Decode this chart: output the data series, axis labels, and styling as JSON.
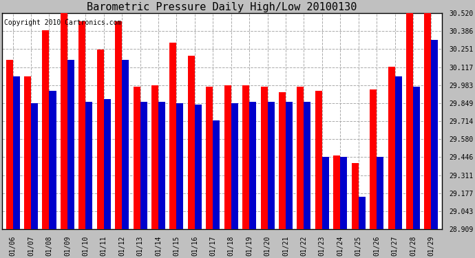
{
  "title": "Barometric Pressure Daily High/Low 20100130",
  "copyright": "Copyright 2010 Cartronics.com",
  "dates": [
    "01/06",
    "01/07",
    "01/08",
    "01/09",
    "01/10",
    "01/11",
    "01/12",
    "01/13",
    "01/14",
    "01/15",
    "01/16",
    "01/17",
    "01/18",
    "01/19",
    "01/20",
    "01/21",
    "01/22",
    "01/23",
    "01/24",
    "01/25",
    "01/26",
    "01/27",
    "01/28",
    "01/29"
  ],
  "highs": [
    30.17,
    30.05,
    30.39,
    30.52,
    30.46,
    30.25,
    30.46,
    29.97,
    29.98,
    30.3,
    30.2,
    29.97,
    29.98,
    29.98,
    29.97,
    29.93,
    29.97,
    29.94,
    29.46,
    29.4,
    29.95,
    30.12,
    30.52,
    30.52
  ],
  "lows": [
    30.05,
    29.85,
    29.94,
    30.17,
    29.86,
    29.88,
    30.17,
    29.86,
    29.86,
    29.85,
    29.84,
    29.72,
    29.85,
    29.86,
    29.86,
    29.86,
    29.86,
    29.45,
    29.45,
    29.15,
    29.45,
    30.05,
    29.97,
    30.32
  ],
  "high_color": "#ff0000",
  "low_color": "#0000cc",
  "yticks": [
    28.909,
    29.043,
    29.177,
    29.311,
    29.446,
    29.58,
    29.714,
    29.849,
    29.983,
    30.117,
    30.251,
    30.386,
    30.52
  ],
  "ymin": 28.909,
  "ymax": 30.52,
  "bg_color": "#c0c0c0",
  "plot_bg_color": "#ffffff",
  "grid_color": "#aaaaaa",
  "title_fontsize": 11,
  "copyright_fontsize": 7
}
